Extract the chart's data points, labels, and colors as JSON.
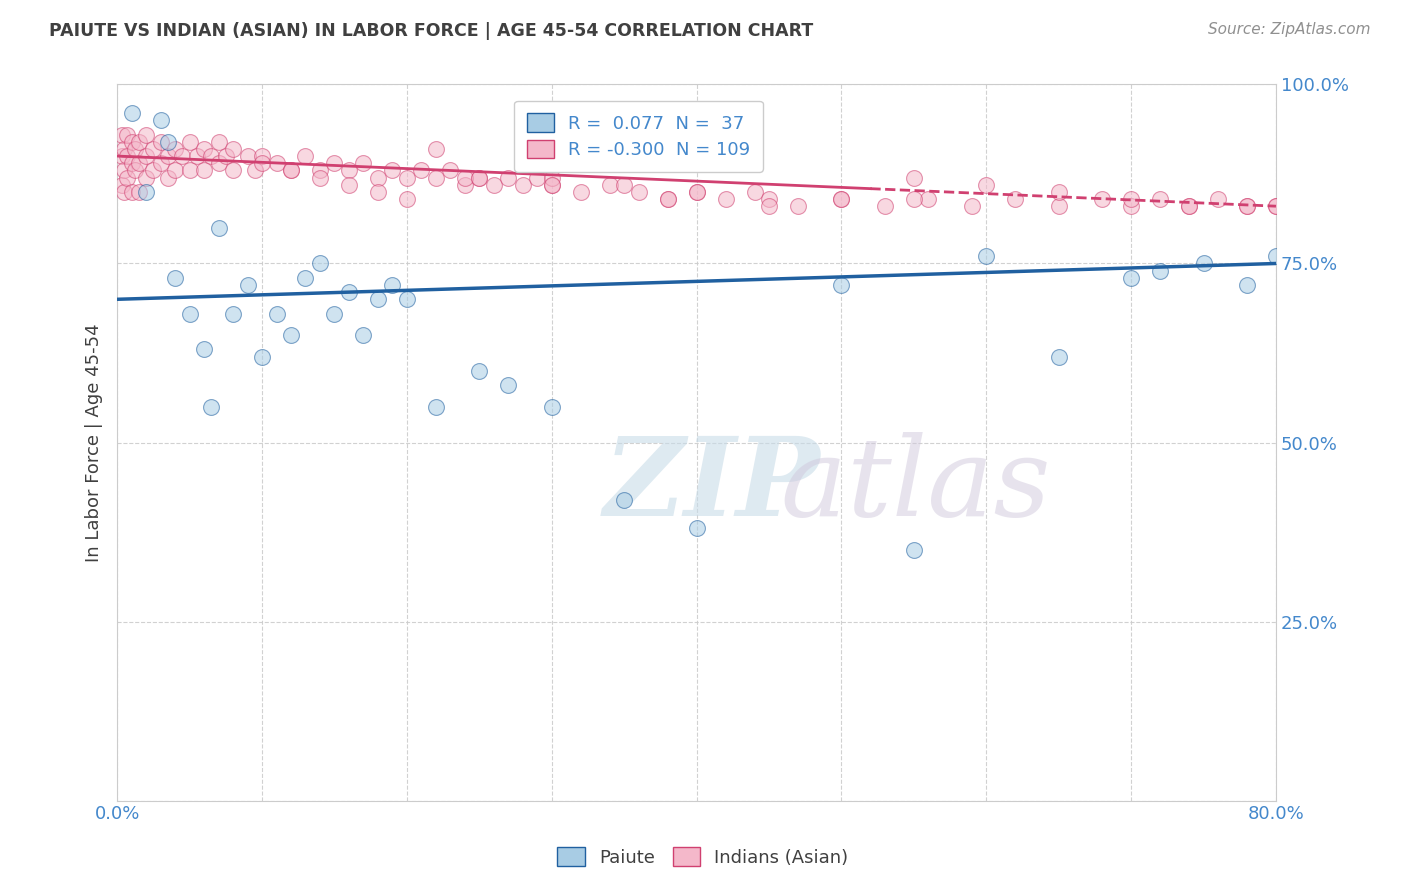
{
  "title": "PAIUTE VS INDIAN (ASIAN) IN LABOR FORCE | AGE 45-54 CORRELATION CHART",
  "source": "Source: ZipAtlas.com",
  "ylabel": "In Labor Force | Age 45-54",
  "xlim": [
    0.0,
    80.0
  ],
  "ylim": [
    0.0,
    100.0
  ],
  "blue_r": 0.077,
  "blue_n": 37,
  "pink_r": -0.3,
  "pink_n": 109,
  "blue_color": "#a8cce4",
  "pink_color": "#f4b8ca",
  "blue_line_color": "#2060a0",
  "pink_line_color": "#d04070",
  "title_color": "#404040",
  "source_color": "#909090",
  "tick_color": "#4488cc",
  "grid_color": "#cccccc",
  "legend_label_blue": "Paiute",
  "legend_label_pink": "Indians (Asian)",
  "blue_scatter_x": [
    1.0,
    2.0,
    4.0,
    5.0,
    6.0,
    7.0,
    8.0,
    9.0,
    10.0,
    11.0,
    12.0,
    13.0,
    14.0,
    15.0,
    16.0,
    17.0,
    18.0,
    19.0,
    20.0,
    22.0,
    25.0,
    27.0,
    30.0,
    35.0,
    40.0,
    50.0,
    55.0,
    60.0,
    65.0,
    70.0,
    72.0,
    75.0,
    78.0,
    80.0,
    3.0,
    3.5,
    6.5
  ],
  "blue_scatter_y": [
    96.0,
    85.0,
    73.0,
    68.0,
    63.0,
    80.0,
    68.0,
    72.0,
    62.0,
    68.0,
    65.0,
    73.0,
    75.0,
    68.0,
    71.0,
    65.0,
    70.0,
    72.0,
    70.0,
    55.0,
    60.0,
    58.0,
    55.0,
    42.0,
    38.0,
    72.0,
    35.0,
    76.0,
    62.0,
    73.0,
    74.0,
    75.0,
    72.0,
    76.0,
    95.0,
    92.0,
    55.0
  ],
  "pink_scatter_x": [
    0.3,
    0.3,
    0.3,
    0.5,
    0.5,
    0.5,
    0.7,
    0.7,
    0.7,
    1.0,
    1.0,
    1.0,
    1.2,
    1.2,
    1.5,
    1.5,
    1.5,
    2.0,
    2.0,
    2.0,
    2.5,
    2.5,
    3.0,
    3.0,
    3.5,
    3.5,
    4.0,
    4.0,
    4.5,
    5.0,
    5.0,
    5.5,
    6.0,
    6.0,
    6.5,
    7.0,
    7.0,
    7.5,
    8.0,
    8.0,
    9.0,
    9.5,
    10.0,
    11.0,
    12.0,
    13.0,
    14.0,
    15.0,
    16.0,
    17.0,
    18.0,
    19.0,
    20.0,
    21.0,
    22.0,
    23.0,
    24.0,
    25.0,
    26.0,
    27.0,
    28.0,
    29.0,
    30.0,
    32.0,
    34.0,
    36.0,
    38.0,
    40.0,
    42.0,
    44.0,
    47.0,
    50.0,
    53.0,
    56.0,
    59.0,
    62.0,
    65.0,
    68.0,
    70.0,
    72.0,
    74.0,
    76.0,
    78.0,
    80.0,
    22.0,
    24.0,
    30.0,
    35.0,
    40.0,
    45.0,
    50.0,
    55.0,
    60.0,
    65.0,
    70.0,
    74.0,
    78.0,
    80.0,
    10.0,
    12.0,
    14.0,
    16.0,
    18.0,
    20.0,
    25.0,
    30.0,
    38.0,
    45.0,
    55.0
  ],
  "pink_scatter_y": [
    90.0,
    86.0,
    93.0,
    91.0,
    88.0,
    85.0,
    93.0,
    90.0,
    87.0,
    92.0,
    89.0,
    85.0,
    91.0,
    88.0,
    92.0,
    89.0,
    85.0,
    93.0,
    90.0,
    87.0,
    91.0,
    88.0,
    92.0,
    89.0,
    90.0,
    87.0,
    91.0,
    88.0,
    90.0,
    92.0,
    88.0,
    90.0,
    91.0,
    88.0,
    90.0,
    92.0,
    89.0,
    90.0,
    91.0,
    88.0,
    90.0,
    88.0,
    90.0,
    89.0,
    88.0,
    90.0,
    88.0,
    89.0,
    88.0,
    89.0,
    87.0,
    88.0,
    87.0,
    88.0,
    87.0,
    88.0,
    86.0,
    87.0,
    86.0,
    87.0,
    86.0,
    87.0,
    86.0,
    85.0,
    86.0,
    85.0,
    84.0,
    85.0,
    84.0,
    85.0,
    83.0,
    84.0,
    83.0,
    84.0,
    83.0,
    84.0,
    83.0,
    84.0,
    83.0,
    84.0,
    83.0,
    84.0,
    83.0,
    83.0,
    91.0,
    87.0,
    87.0,
    86.0,
    85.0,
    84.0,
    84.0,
    87.0,
    86.0,
    85.0,
    84.0,
    83.0,
    83.0,
    83.0,
    89.0,
    88.0,
    87.0,
    86.0,
    85.0,
    84.0,
    87.0,
    86.0,
    84.0,
    83.0,
    84.0
  ]
}
